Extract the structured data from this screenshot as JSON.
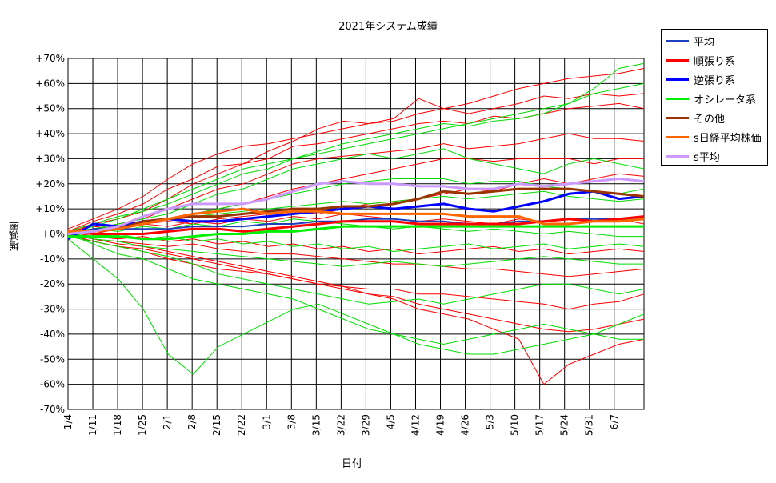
{
  "chart_data": {
    "type": "line",
    "title": "2021年システム成績",
    "xlabel": "日付",
    "ylabel": "増減率",
    "ylim": [
      -70,
      70
    ],
    "y_ticks": [
      "+70%",
      "+60%",
      "+50%",
      "+40%",
      "+30%",
      "+20%",
      "+10%",
      "+0%",
      "-10%",
      "-20%",
      "-30%",
      "-40%",
      "-50%",
      "-60%",
      "-70%"
    ],
    "x_ticks": [
      "1/4",
      "1/11",
      "1/18",
      "1/25",
      "2/1",
      "2/8",
      "2/15",
      "2/22",
      "3/1",
      "3/8",
      "3/15",
      "3/22",
      "3/29",
      "4/5",
      "4/12",
      "4/19",
      "4/26",
      "5/3",
      "5/10",
      "5/17",
      "5/24",
      "5/31",
      "6/7"
    ],
    "grid": true,
    "legend_position": "right",
    "series": [
      {
        "name": "平均",
        "color": "#1f3fbf",
        "values": [
          -1,
          2,
          2,
          2,
          2,
          3,
          3,
          3,
          4,
          4,
          5,
          5,
          6,
          6,
          5,
          5,
          4,
          4,
          5,
          5,
          6,
          6,
          6,
          6
        ]
      },
      {
        "name": "順張り系",
        "color": "#ff0000",
        "values": [
          1,
          0,
          0,
          0,
          1,
          2,
          2,
          1,
          2,
          3,
          4,
          5,
          5,
          5,
          4,
          4,
          4,
          4,
          4,
          5,
          6,
          5,
          6,
          7
        ]
      },
      {
        "name": "逆張り系",
        "color": "#0000ff",
        "values": [
          -2,
          4,
          3,
          5,
          6,
          5,
          5,
          6,
          7,
          8,
          9,
          10,
          11,
          10,
          11,
          12,
          10,
          9,
          11,
          13,
          16,
          17,
          14,
          15
        ]
      },
      {
        "name": "オシレータ系",
        "color": "#00ee00",
        "values": [
          -1,
          -1,
          -1,
          -2,
          -2,
          -1,
          0,
          0,
          1,
          1,
          2,
          3,
          3,
          3,
          3,
          3,
          3,
          3,
          3,
          3,
          3,
          3,
          3,
          3
        ]
      },
      {
        "name": "その他",
        "color": "#993300",
        "values": [
          0,
          1,
          2,
          5,
          6,
          7,
          7,
          8,
          9,
          10,
          10,
          11,
          11,
          12,
          14,
          17,
          16,
          17,
          18,
          18,
          18,
          17,
          16,
          15
        ]
      },
      {
        "name": "s日経平均株価",
        "color": "#ff6600",
        "values": [
          1,
          1,
          2,
          4,
          6,
          8,
          9,
          10,
          8,
          9,
          9,
          8,
          8,
          8,
          8,
          8,
          7,
          7,
          7,
          4,
          4,
          5,
          5,
          6
        ]
      },
      {
        "name": "s平均",
        "color": "#cc99ff",
        "values": [
          0,
          1,
          3,
          7,
          10,
          12,
          12,
          12,
          14,
          17,
          20,
          21,
          20,
          20,
          19,
          19,
          18,
          18,
          20,
          19,
          20,
          21,
          22,
          21
        ]
      }
    ],
    "individual_system_lines": {
      "note_colors": [
        "#ff0000",
        "#00dd00"
      ],
      "series": [
        {
          "color": "#ff0000",
          "values": [
            2,
            6,
            10,
            15,
            22,
            28,
            32,
            35,
            36,
            38,
            40,
            42,
            44,
            45,
            48,
            50,
            52,
            55,
            58,
            60,
            62,
            63,
            64,
            66
          ]
        },
        {
          "color": "#ff0000",
          "values": [
            1,
            5,
            8,
            12,
            18,
            22,
            27,
            28,
            33,
            37,
            42,
            45,
            44,
            46,
            54,
            50,
            48,
            50,
            52,
            55,
            54,
            56,
            55,
            56
          ]
        },
        {
          "color": "#ff0000",
          "values": [
            0,
            4,
            6,
            9,
            14,
            20,
            24,
            28,
            30,
            35,
            36,
            38,
            40,
            42,
            44,
            45,
            44,
            47,
            46,
            48,
            50,
            51,
            52,
            50
          ]
        },
        {
          "color": "#ff0000",
          "values": [
            0,
            2,
            4,
            6,
            10,
            14,
            18,
            20,
            24,
            28,
            30,
            31,
            32,
            33,
            34,
            36,
            34,
            35,
            36,
            38,
            40,
            38,
            38,
            37
          ]
        },
        {
          "color": "#ff0000",
          "values": [
            -1,
            0,
            2,
            4,
            6,
            8,
            10,
            12,
            15,
            18,
            20,
            22,
            24,
            26,
            28,
            30,
            30,
            29,
            30,
            30,
            30,
            28,
            30,
            30
          ]
        },
        {
          "color": "#ff0000",
          "values": [
            1,
            2,
            3,
            4,
            5,
            4,
            6,
            7,
            8,
            9,
            8,
            10,
            12,
            13,
            14,
            16,
            18,
            17,
            20,
            22,
            20,
            22,
            24,
            23
          ]
        },
        {
          "color": "#ff0000",
          "values": [
            0,
            -2,
            -3,
            -4,
            -5,
            -4,
            -6,
            -7,
            -8,
            -8,
            -9,
            -10,
            -11,
            -12,
            -12,
            -13,
            -14,
            -14,
            -15,
            -16,
            -17,
            -16,
            -15,
            -14
          ]
        },
        {
          "color": "#ff0000",
          "values": [
            0,
            -3,
            -5,
            -7,
            -10,
            -12,
            -14,
            -15,
            -16,
            -18,
            -20,
            -21,
            -22,
            -22,
            -24,
            -24,
            -25,
            -26,
            -27,
            -28,
            -30,
            -28,
            -27,
            -24
          ]
        },
        {
          "color": "#ff0000",
          "values": [
            -1,
            -3,
            -5,
            -6,
            -8,
            -10,
            -12,
            -14,
            -16,
            -18,
            -20,
            -22,
            -24,
            -25,
            -28,
            -30,
            -32,
            -34,
            -36,
            -38,
            -39,
            -38,
            -36,
            -34
          ]
        },
        {
          "color": "#ff0000",
          "values": [
            0,
            -2,
            -4,
            -5,
            -7,
            -9,
            -11,
            -13,
            -15,
            -17,
            -19,
            -21,
            -24,
            -26,
            -30,
            -32,
            -34,
            -38,
            -42,
            -60,
            -52,
            -48,
            -44,
            -42
          ]
        },
        {
          "color": "#ff0000",
          "values": [
            1,
            3,
            2,
            4,
            3,
            5,
            4,
            6,
            5,
            7,
            6,
            8,
            7,
            6,
            5,
            6,
            5,
            4,
            6,
            5,
            6,
            5,
            6,
            4
          ]
        },
        {
          "color": "#ff0000",
          "values": [
            0,
            -1,
            -2,
            -1,
            -3,
            -2,
            -4,
            -3,
            -5,
            -4,
            -6,
            -5,
            -7,
            -6,
            -8,
            -7,
            -6,
            -5,
            -7,
            -6,
            -8,
            -7,
            -6,
            -7
          ]
        },
        {
          "color": "#00dd00",
          "values": [
            0,
            3,
            6,
            10,
            14,
            18,
            22,
            26,
            28,
            30,
            32,
            34,
            36,
            38,
            40,
            42,
            44,
            46,
            48,
            50,
            52,
            58,
            66,
            68
          ]
        },
        {
          "color": "#00dd00",
          "values": [
            1,
            4,
            7,
            9,
            12,
            16,
            20,
            24,
            26,
            30,
            33,
            36,
            38,
            40,
            42,
            44,
            43,
            45,
            46,
            48,
            52,
            56,
            58,
            60
          ]
        },
        {
          "color": "#00dd00",
          "values": [
            0,
            2,
            4,
            6,
            8,
            12,
            16,
            18,
            22,
            26,
            28,
            30,
            32,
            30,
            32,
            34,
            30,
            28,
            26,
            24,
            28,
            30,
            28,
            26
          ]
        },
        {
          "color": "#00dd00",
          "values": [
            0,
            2,
            3,
            5,
            6,
            8,
            10,
            12,
            14,
            16,
            18,
            20,
            21,
            22,
            22,
            22,
            20,
            21,
            21,
            19,
            18,
            17,
            16,
            18
          ]
        },
        {
          "color": "#00dd00",
          "values": [
            -2,
            -10,
            -18,
            -30,
            -48,
            -56,
            -45,
            -40,
            -35,
            -30,
            -28,
            -32,
            -36,
            -40,
            -44,
            -46,
            -48,
            -48,
            -46,
            -44,
            -42,
            -40,
            -36,
            -32
          ]
        },
        {
          "color": "#00dd00",
          "values": [
            0,
            -4,
            -8,
            -10,
            -14,
            -18,
            -20,
            -22,
            -24,
            -26,
            -30,
            -34,
            -38,
            -40,
            -42,
            -44,
            -42,
            -40,
            -38,
            -36,
            -38,
            -40,
            -42,
            -42
          ]
        },
        {
          "color": "#00dd00",
          "values": [
            -1,
            -3,
            -5,
            -7,
            -9,
            -12,
            -16,
            -18,
            -20,
            -22,
            -24,
            -26,
            -28,
            -27,
            -26,
            -28,
            -26,
            -24,
            -22,
            -20,
            -20,
            -22,
            -24,
            -22
          ]
        },
        {
          "color": "#00dd00",
          "values": [
            0,
            -2,
            -3,
            -5,
            -6,
            -7,
            -8,
            -9,
            -10,
            -11,
            -12,
            -13,
            -12,
            -11,
            -12,
            -13,
            -12,
            -11,
            -10,
            -9,
            -10,
            -11,
            -12,
            -12
          ]
        },
        {
          "color": "#00dd00",
          "values": [
            1,
            2,
            1,
            3,
            2,
            4,
            3,
            5,
            4,
            6,
            5,
            4,
            3,
            2,
            3,
            2,
            1,
            2,
            1,
            0,
            1,
            0,
            -1,
            -1
          ]
        },
        {
          "color": "#00dd00",
          "values": [
            0,
            -1,
            0,
            -2,
            -1,
            -3,
            -2,
            -4,
            -3,
            -5,
            -4,
            -6,
            -5,
            -7,
            -6,
            -5,
            -4,
            -6,
            -5,
            -4,
            -6,
            -5,
            -4,
            -5
          ]
        },
        {
          "color": "#00dd00",
          "values": [
            -1,
            1,
            3,
            4,
            6,
            7,
            8,
            9,
            10,
            11,
            12,
            13,
            12,
            13,
            14,
            15,
            14,
            15,
            16,
            17,
            15,
            14,
            13,
            14
          ]
        }
      ]
    }
  }
}
